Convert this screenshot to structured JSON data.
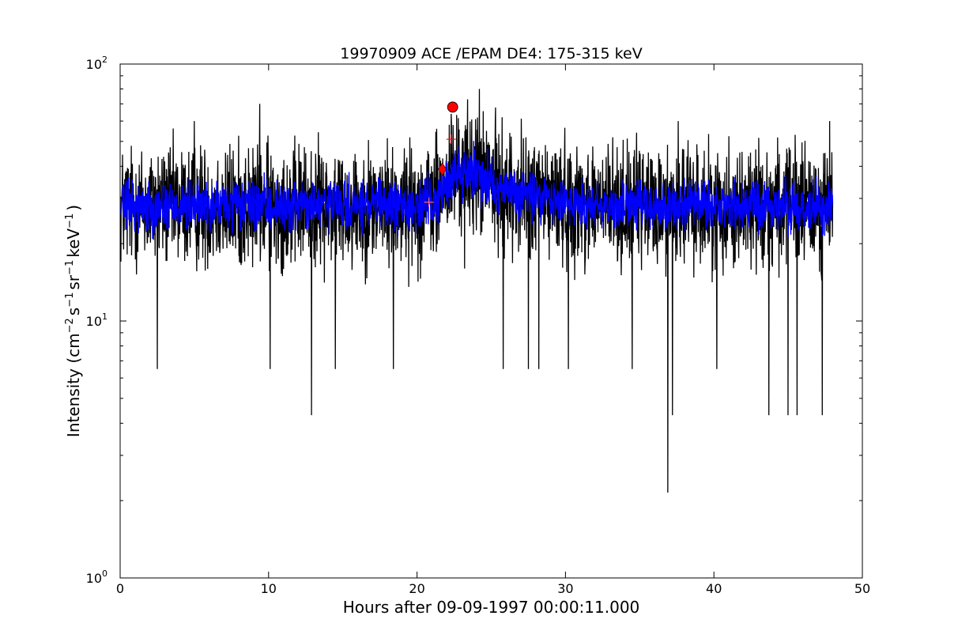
{
  "chart_data": {
    "type": "line",
    "title": "19970909 ACE /EPAM DE4: 175-315 keV",
    "xlabel": "Hours after 09-09-1997 00:00:11.000",
    "ylabel_parts": {
      "prefix": "Intensity (cm",
      "sup1": "−2",
      "s": "s",
      "sup2": "−1",
      "sr": "sr",
      "sup3": "−1",
      "kev": "keV",
      "sup4": "−1",
      "suffix": ")"
    },
    "xlim": [
      0,
      50
    ],
    "ylim": [
      1,
      100
    ],
    "yscale": "log",
    "grid": false,
    "x_ticks": [
      0,
      10,
      20,
      30,
      40,
      50
    ],
    "x_tick_labels": [
      "0",
      "10",
      "20",
      "30",
      "40",
      "50"
    ],
    "y_ticks": [
      1,
      10,
      100
    ],
    "y_tick_labels": [
      {
        "base": "10",
        "exp": "0"
      },
      {
        "base": "10",
        "exp": "1"
      },
      {
        "base": "10",
        "exp": "2"
      }
    ],
    "x_range_data": [
      0.05,
      48.0
    ],
    "series": [
      {
        "color": "#000000",
        "baseline": [
          [
            0,
            28
          ],
          [
            20,
            28
          ],
          [
            21.5,
            30
          ],
          [
            22.5,
            38
          ],
          [
            24,
            38
          ],
          [
            26,
            32
          ],
          [
            30,
            29
          ],
          [
            34,
            28
          ],
          [
            40,
            28
          ],
          [
            48,
            28
          ]
        ],
        "noise_log10": 0.22,
        "spikes": [
          {
            "x": 2.5,
            "y": 6.5
          },
          {
            "x": 5.0,
            "y": 60
          },
          {
            "x": 9.4,
            "y": 70
          },
          {
            "x": 10.1,
            "y": 6.5
          },
          {
            "x": 12.9,
            "y": 4.3
          },
          {
            "x": 14.5,
            "y": 6.5
          },
          {
            "x": 18.4,
            "y": 6.5
          },
          {
            "x": 22.3,
            "y": 64
          },
          {
            "x": 23.2,
            "y": 16
          },
          {
            "x": 24.2,
            "y": 80
          },
          {
            "x": 25.8,
            "y": 6.5
          },
          {
            "x": 27.5,
            "y": 6.5
          },
          {
            "x": 28.2,
            "y": 6.5
          },
          {
            "x": 30.2,
            "y": 6.5
          },
          {
            "x": 34.5,
            "y": 6.5
          },
          {
            "x": 36.9,
            "y": 2.15
          },
          {
            "x": 37.2,
            "y": 4.3
          },
          {
            "x": 37.6,
            "y": 60
          },
          {
            "x": 40.2,
            "y": 6.5
          },
          {
            "x": 43.7,
            "y": 4.3
          },
          {
            "x": 45.0,
            "y": 4.3
          },
          {
            "x": 45.6,
            "y": 4.3
          },
          {
            "x": 47.3,
            "y": 4.3
          },
          {
            "x": 47.8,
            "y": 60
          }
        ]
      },
      {
        "color": "#0000ff",
        "baseline": [
          [
            0,
            28
          ],
          [
            20,
            28
          ],
          [
            21.5,
            30
          ],
          [
            22.5,
            38
          ],
          [
            24,
            38
          ],
          [
            26,
            32
          ],
          [
            30,
            29
          ],
          [
            34,
            28
          ],
          [
            40,
            28
          ],
          [
            48,
            28
          ]
        ],
        "noise_log10": 0.09
      }
    ],
    "markers": [
      {
        "type": "circle",
        "x": 22.4,
        "y": 68,
        "color": "#ff0000"
      },
      {
        "type": "diamond",
        "x": 21.7,
        "y": 39,
        "color": "#ff0000"
      },
      {
        "type": "plus",
        "x": 22.3,
        "y": 51,
        "color": "#ff0000"
      },
      {
        "type": "plus",
        "x": 20.8,
        "y": 29,
        "color": "#ff6666"
      }
    ]
  }
}
